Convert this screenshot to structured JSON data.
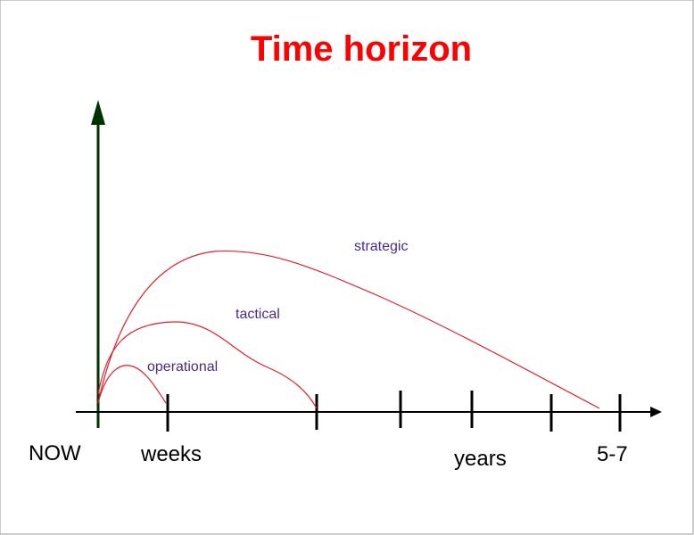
{
  "title": "Time horizon",
  "curves": [
    {
      "label": "strategic"
    },
    {
      "label": "tactical"
    },
    {
      "label": "operational"
    }
  ],
  "axis_labels": [
    "NOW",
    "weeks",
    "years",
    "5-7"
  ]
}
